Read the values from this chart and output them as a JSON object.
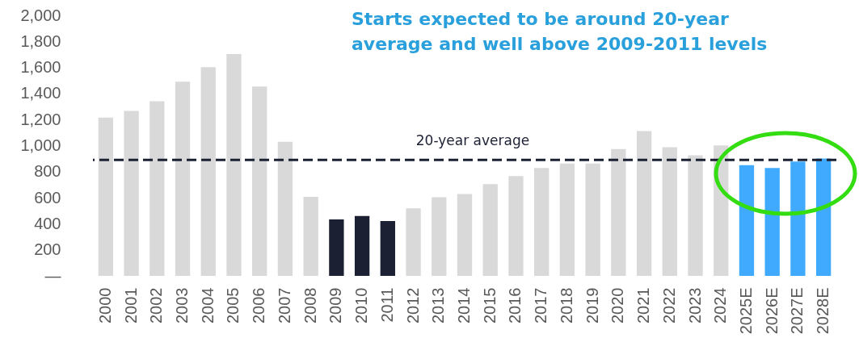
{
  "chart_data": {
    "type": "bar",
    "title": "Starts expected to be around 20-year average and well above 2009-2011 levels",
    "categories": [
      "2000",
      "2001",
      "2002",
      "2003",
      "2004",
      "2005",
      "2006",
      "2007",
      "2008",
      "2009",
      "2010",
      "2011",
      "2012",
      "2013",
      "2014",
      "2015",
      "2016",
      "2017",
      "2018",
      "2019",
      "2020",
      "2021",
      "2022",
      "2023",
      "2024",
      "2025E",
      "2026E",
      "2027E",
      "2028E"
    ],
    "values": [
      1215,
      1267,
      1340,
      1491,
      1602,
      1703,
      1453,
      1030,
      607,
      433,
      459,
      421,
      518,
      604,
      629,
      704,
      766,
      828,
      863,
      863,
      974,
      1111,
      987,
      925,
      1001,
      850,
      828,
      877,
      901
    ],
    "colors": [
      "#d9d9d9",
      "#d9d9d9",
      "#d9d9d9",
      "#d9d9d9",
      "#d9d9d9",
      "#d9d9d9",
      "#d9d9d9",
      "#d9d9d9",
      "#d9d9d9",
      "#1c2033",
      "#1c2033",
      "#1c2033",
      "#d9d9d9",
      "#d9d9d9",
      "#d9d9d9",
      "#d9d9d9",
      "#d9d9d9",
      "#d9d9d9",
      "#d9d9d9",
      "#d9d9d9",
      "#d9d9d9",
      "#d9d9d9",
      "#d9d9d9",
      "#d9d9d9",
      "#d9d9d9",
      "#40aaff",
      "#40aaff",
      "#40aaff",
      "#40aaff"
    ],
    "ylim": [
      0,
      2000
    ],
    "yticks": [
      {
        "value": 0,
        "label": "—"
      },
      200,
      400,
      600,
      800,
      {
        "value": 1000,
        "label": "1,000"
      },
      {
        "value": 1200,
        "label": "1,200"
      },
      {
        "value": 1400,
        "label": "1,400"
      },
      {
        "value": 1600,
        "label": "1,600"
      },
      {
        "value": 1800,
        "label": "1,800"
      },
      {
        "value": 2000,
        "label": "2,000"
      }
    ],
    "ref_lines": [
      {
        "axis": "y",
        "value": 890,
        "label": "20-year average",
        "color": "#1c2033",
        "line_style": "dashed"
      }
    ],
    "grid": false
  }
}
